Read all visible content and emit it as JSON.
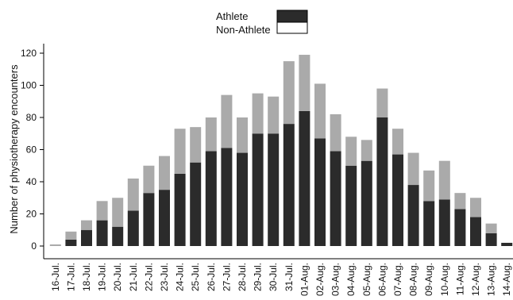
{
  "chart_data": {
    "type": "bar",
    "stacked": true,
    "title": "",
    "xlabel": "",
    "ylabel": "Number of physiotherapy encounters",
    "ylim": [
      -5,
      130
    ],
    "yticks": [
      0,
      20,
      40,
      60,
      80,
      100,
      120
    ],
    "grid": false,
    "legend_position": "top-center",
    "categories": [
      "16-Jul.",
      "17-Jul.",
      "18-Jul.",
      "19-Jul.",
      "20-Jul.",
      "21-Jul.",
      "22-Jul.",
      "23-Jul.",
      "24-Jul.",
      "25-Jul.",
      "26-Jul.",
      "27-Jul.",
      "28-Jul.",
      "29-Jul.",
      "30-Jul.",
      "31-Jul.",
      "01-Aug.",
      "02-Aug.",
      "03-Aug.",
      "04-Aug.",
      "05-Aug.",
      "06-Aug.",
      "07-Aug.",
      "08-Aug.",
      "09-Aug.",
      "10-Aug.",
      "11-Aug.",
      "12-Aug.",
      "13-Aug.",
      "14-Aug."
    ],
    "series": [
      {
        "name": "Athlete",
        "color": "#2b2b2b",
        "values": [
          0,
          4,
          10,
          16,
          12,
          22,
          33,
          35,
          45,
          52,
          59,
          61,
          58,
          70,
          70,
          76,
          84,
          67,
          59,
          50,
          53,
          80,
          57,
          38,
          28,
          29,
          23,
          18,
          8,
          2
        ]
      },
      {
        "name": "Non-Athlete",
        "color": "#aaaaaa",
        "values": [
          1,
          5,
          6,
          12,
          18,
          20,
          17,
          21,
          28,
          22,
          21,
          33,
          22,
          25,
          23,
          39,
          35,
          34,
          23,
          18,
          13,
          18,
          16,
          20,
          19,
          24,
          10,
          12,
          6,
          0
        ]
      }
    ]
  }
}
